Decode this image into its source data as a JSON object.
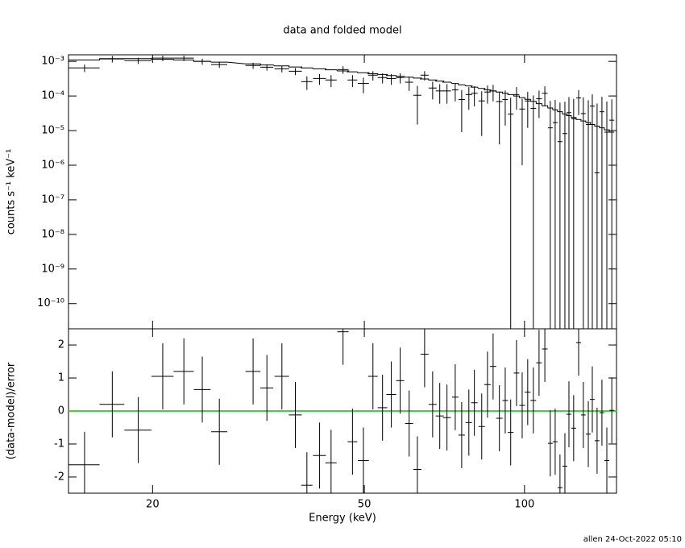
{
  "chart_data": [
    {
      "type": "errorbar",
      "title": "data and folded model",
      "ylabel": "counts s⁻¹ keV⁻¹",
      "xlog": true,
      "ylog": true,
      "xlim": [
        13.9,
        148.9
      ],
      "ylim": [
        1.87e-11,
        0.00155
      ],
      "yticks": [
        {
          "value": 0.001,
          "label": "10⁻³"
        },
        {
          "value": 0.0001,
          "label": "10⁻⁴"
        },
        {
          "value": 1e-05,
          "label": "10⁻⁵"
        },
        {
          "value": 1e-06,
          "label": "10⁻⁶"
        },
        {
          "value": 1e-07,
          "label": "10⁻⁷"
        },
        {
          "value": 1e-08,
          "label": "10⁻⁸"
        },
        {
          "value": 1e-09,
          "label": "10⁻⁹"
        },
        {
          "value": 1e-10,
          "label": "10⁻¹⁰"
        }
      ],
      "color": "#000000",
      "model_color": "#000000",
      "x": [
        14.9,
        16.8,
        18.8,
        20.9,
        22.9,
        24.8,
        26.7,
        30.9,
        32.8,
        35.0,
        37.1,
        39.0,
        41.2,
        43.3,
        45.6,
        47.5,
        49.8,
        51.9,
        54.1,
        56.2,
        58.4,
        60.7,
        62.9,
        64.9,
        67.2,
        69.3,
        71.5,
        74.1,
        76.2,
        78.6,
        80.5,
        83.1,
        85.2,
        87.3,
        89.7,
        92.0,
        94.2,
        96.6,
        99.0,
        101.4,
        103.9,
        106.5,
        109.2,
        111.8,
        114.2,
        116.6,
        119.1,
        121.2,
        123.7,
        126.4,
        129.0,
        131.8,
        134.1,
        136.9,
        139.8,
        142.8,
        145.9
      ],
      "xerr": [
        1.0,
        0.9,
        1.1,
        1.0,
        1.0,
        0.9,
        0.93,
        1.0,
        0.92,
        1.1,
        1.04,
        0.95,
        1.15,
        1.06,
        1.11,
        0.99,
        1.21,
        1.09,
        1.13,
        1.18,
        1.02,
        1.06,
        1.1,
        1.13,
        1.17,
        1.21,
        1.25,
        1.03,
        1.06,
        1.1,
        1.12,
        1.16,
        1.19,
        1.22,
        1.25,
        1.12,
        1.15,
        1.18,
        1.21,
        1.24,
        1.27,
        1.3,
        1.33,
        1.17,
        1.2,
        1.22,
        1.25,
        1.27,
        1.3,
        1.32,
        1.35,
        1.38,
        1.4,
        1.43,
        1.46,
        1.5,
        1.53
      ],
      "values": [
        0.00065,
        0.00118,
        0.00106,
        0.00124,
        0.00124,
        0.001,
        0.00081,
        0.00076,
        0.00068,
        0.00061,
        0.00052,
        0.00026,
        0.00032,
        0.00029,
        0.00058,
        0.00029,
        0.00023,
        0.0004,
        0.00034,
        0.00032,
        0.00034,
        0.00025,
        0.000105,
        0.0004,
        0.00017,
        0.00014,
        0.00014,
        0.00015,
        7.9e-05,
        0.00011,
        0.00012,
        7.2e-05,
        0.00013,
        0.00014,
        6.9e-05,
        7.9e-05,
        3e-05,
        0.00011,
        4.2e-05,
        7.2e-05,
        4.4e-05,
        8.3e-05,
        0.00012,
        1.2e-05,
        1.7e-05,
        4.8e-06,
        8.2e-06,
        3.3e-05,
        2.2e-05,
        8.8e-05,
        3.1e-05,
        1.5e-05,
        5.1e-05,
        6e-07,
        3.5e-05,
        9e-06,
        2e-05
      ],
      "yerr": [
        0.00016,
        0.00025,
        0.00022,
        0.00022,
        0.00022,
        0.0002,
        0.00016,
        0.00015,
        0.00014,
        0.00013,
        0.00012,
        0.00011,
        0.00011,
        0.00011,
        0.00014,
        0.00011,
        0.00011,
        0.00012,
        0.00011,
        0.00011,
        0.00011,
        0.00011,
        9e-05,
        0.00012,
        9e-05,
        8e-05,
        8e-05,
        8e-05,
        7e-05,
        7e-05,
        7e-05,
        6.5e-05,
        7e-05,
        7e-05,
        6.5e-05,
        6.5e-05,
        6e-05,
        7e-05,
        4.1e-05,
        6e-05,
        6e-05,
        6e-05,
        7e-05,
        6e-05,
        6e-05,
        6e-05,
        6e-05,
        6e-05,
        6e-05,
        6e-05,
        6e-05,
        6e-05,
        6e-05,
        6e-05,
        6e-05,
        6e-05,
        6e-05
      ],
      "model": [
        0.0011,
        0.0012,
        0.0012,
        0.00115,
        0.0011,
        0.001,
        0.00095,
        0.00085,
        0.00079,
        0.00074,
        0.00069,
        0.00065,
        0.00061,
        0.00057,
        0.00053,
        0.0005,
        0.00047,
        0.00044,
        0.00042,
        0.00039,
        0.00037,
        0.00035,
        0.00033,
        0.00031,
        0.00029,
        0.00027,
        0.00025,
        0.00023,
        0.00021,
        0.000195,
        0.00018,
        0.000165,
        0.00015,
        0.00014,
        0.00013,
        0.00012,
        0.00011,
        0.0001,
        9e-05,
        8e-05,
        7e-05,
        6e-05,
        5.2e-05,
        4.5e-05,
        4e-05,
        3.5e-05,
        3e-05,
        2.7e-05,
        2.4e-05,
        2.1e-05,
        1.9e-05,
        1.7e-05,
        1.5e-05,
        1.35e-05,
        1.2e-05,
        1.05e-05,
        9e-06
      ]
    },
    {
      "type": "errorbar",
      "ylabel": "(data-model)/error",
      "xlabel": "Energy (keV)",
      "xlog": true,
      "xlim": [
        13.9,
        148.9
      ],
      "ylim": [
        -2.49,
        2.49
      ],
      "xticks": [
        20,
        50,
        100
      ],
      "yticks": [
        -2,
        -1,
        0,
        1,
        2
      ],
      "color": "#000000",
      "reference_line": 0,
      "reference_color": "#33dd33",
      "values": [
        -1.63,
        0.2,
        -0.58,
        1.05,
        1.2,
        0.65,
        -0.63,
        1.2,
        0.7,
        1.05,
        -0.12,
        -2.25,
        -1.35,
        -1.57,
        2.4,
        -0.93,
        -1.5,
        1.05,
        0.1,
        0.5,
        0.92,
        -0.38,
        -1.77,
        1.72,
        0.2,
        -0.15,
        -0.2,
        0.42,
        -0.73,
        -0.35,
        0.25,
        -0.47,
        0.8,
        1.35,
        -0.22,
        0.32,
        -0.65,
        1.15,
        0.17,
        0.57,
        0.32,
        1.46,
        1.88,
        -0.98,
        -0.93,
        -2.32,
        -1.67,
        -0.1,
        -0.52,
        2.07,
        -0.12,
        -0.7,
        0.35,
        -0.9,
        -0.05,
        -1.5,
        0.02
      ],
      "yerr": [
        1,
        1,
        1,
        1,
        1,
        1,
        1,
        1,
        1,
        1,
        1,
        1,
        1,
        1,
        1,
        1,
        1,
        1,
        1,
        1,
        1,
        1,
        1,
        1,
        1,
        1,
        1,
        1,
        1,
        1,
        1,
        1,
        1,
        1,
        1,
        1,
        1,
        1,
        1,
        1,
        1,
        1,
        1,
        1,
        1,
        1,
        1,
        1,
        1,
        1,
        1,
        1,
        1,
        1,
        1,
        1,
        1
      ]
    }
  ],
  "footer": "allen 24-Oct-2022 05:10"
}
